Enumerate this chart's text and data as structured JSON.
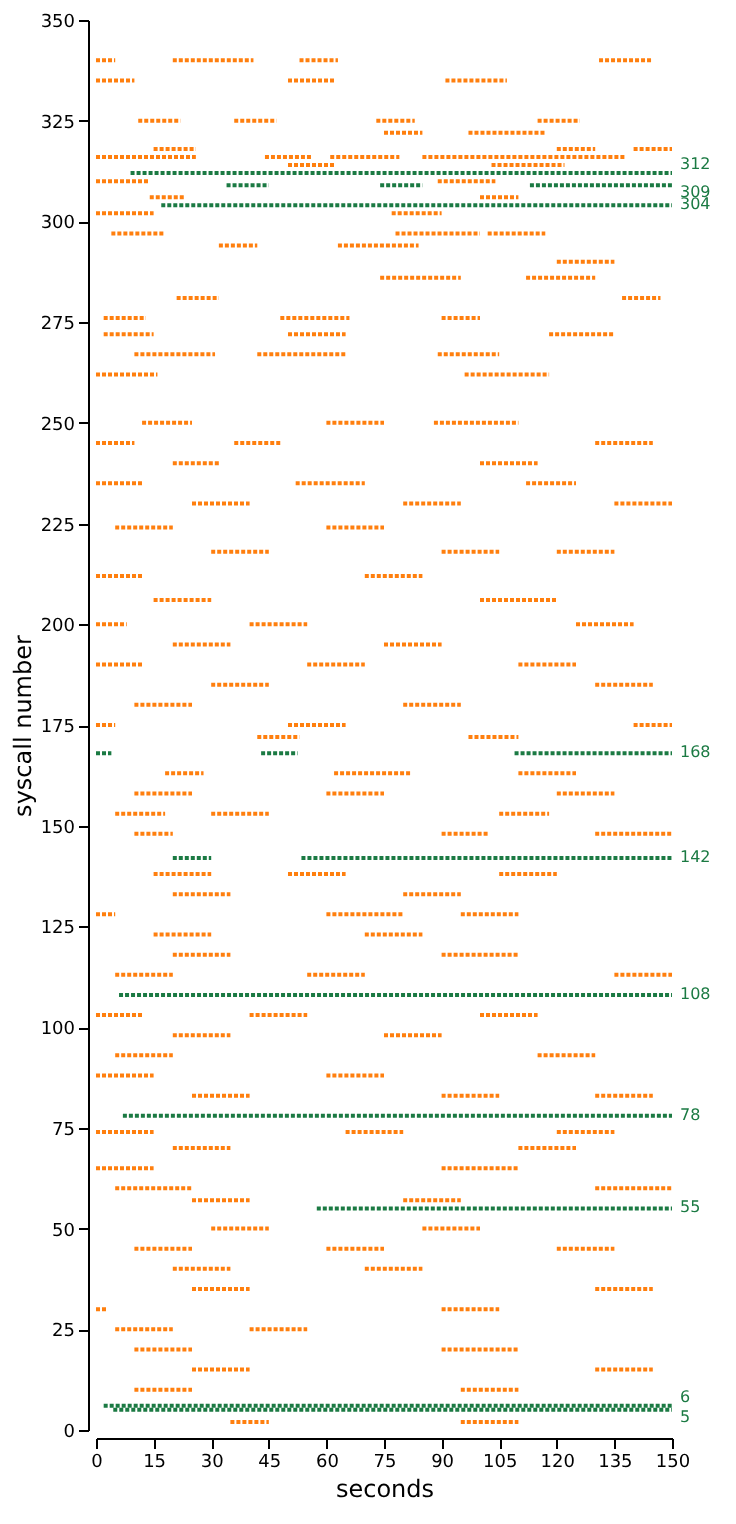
{
  "chart_data": {
    "type": "line",
    "xlabel": "seconds",
    "ylabel": "syscall number",
    "xlim": [
      0,
      150
    ],
    "xticks": [
      0,
      15,
      30,
      45,
      60,
      75,
      90,
      105,
      120,
      135,
      150
    ],
    "ylim": [
      0,
      350
    ],
    "yticks": [
      0,
      25,
      50,
      75,
      100,
      125,
      150,
      175,
      200,
      225,
      250,
      275,
      300,
      325,
      350
    ],
    "grid": false,
    "line_style": "dotted",
    "marker": "none",
    "series": [
      {
        "color": "#ff7f0e",
        "x": [
          0,
          5
        ],
        "values": [
          340,
          340
        ]
      },
      {
        "color": "#ff7f0e",
        "x": [
          20,
          41
        ],
        "values": [
          340,
          340
        ]
      },
      {
        "color": "#ff7f0e",
        "x": [
          53,
          63
        ],
        "values": [
          340,
          340
        ]
      },
      {
        "color": "#ff7f0e",
        "x": [
          131,
          145
        ],
        "values": [
          340,
          340
        ]
      },
      {
        "color": "#ff7f0e",
        "x": [
          0,
          10
        ],
        "values": [
          335,
          335
        ]
      },
      {
        "color": "#ff7f0e",
        "x": [
          50,
          62
        ],
        "values": [
          335,
          335
        ]
      },
      {
        "color": "#ff7f0e",
        "x": [
          91,
          107
        ],
        "values": [
          335,
          335
        ]
      },
      {
        "color": "#ff7f0e",
        "x": [
          11,
          22
        ],
        "values": [
          325,
          325
        ]
      },
      {
        "color": "#ff7f0e",
        "x": [
          36,
          47
        ],
        "values": [
          325,
          325
        ]
      },
      {
        "color": "#ff7f0e",
        "x": [
          73,
          83
        ],
        "values": [
          325,
          325
        ]
      },
      {
        "color": "#ff7f0e",
        "x": [
          115,
          126
        ],
        "values": [
          325,
          325
        ]
      },
      {
        "color": "#ff7f0e",
        "x": [
          75,
          85
        ],
        "values": [
          322,
          322
        ]
      },
      {
        "color": "#ff7f0e",
        "x": [
          97,
          117
        ],
        "values": [
          322,
          322
        ]
      },
      {
        "color": "#ff7f0e",
        "x": [
          15,
          26
        ],
        "values": [
          318,
          318
        ]
      },
      {
        "color": "#ff7f0e",
        "x": [
          120,
          130
        ],
        "values": [
          318,
          318
        ]
      },
      {
        "color": "#ff7f0e",
        "x": [
          140,
          150
        ],
        "values": [
          318,
          318
        ]
      },
      {
        "color": "#ff7f0e",
        "x": [
          0,
          26
        ],
        "values": [
          316,
          316
        ]
      },
      {
        "color": "#ff7f0e",
        "x": [
          44,
          56
        ],
        "values": [
          316,
          316
        ]
      },
      {
        "color": "#ff7f0e",
        "x": [
          61,
          79
        ],
        "values": [
          316,
          316
        ]
      },
      {
        "color": "#ff7f0e",
        "x": [
          85,
          138
        ],
        "values": [
          316,
          316
        ]
      },
      {
        "color": "#ff7f0e",
        "x": [
          50,
          62
        ],
        "values": [
          314,
          314
        ]
      },
      {
        "color": "#ff7f0e",
        "x": [
          103,
          122
        ],
        "values": [
          314,
          314
        ]
      },
      {
        "color": "#ff7f0e",
        "x": [
          0,
          14
        ],
        "values": [
          310,
          310
        ]
      },
      {
        "color": "#ff7f0e",
        "x": [
          89,
          104
        ],
        "values": [
          310,
          310
        ]
      },
      {
        "color": "#ff7f0e",
        "x": [
          14,
          23
        ],
        "values": [
          306,
          306
        ]
      },
      {
        "color": "#ff7f0e",
        "x": [
          100,
          110
        ],
        "values": [
          306,
          306
        ]
      },
      {
        "color": "#ff7f0e",
        "x": [
          0,
          15
        ],
        "values": [
          302,
          302
        ]
      },
      {
        "color": "#ff7f0e",
        "x": [
          77,
          90
        ],
        "values": [
          302,
          302
        ]
      },
      {
        "color": "#ff7f0e",
        "x": [
          4,
          18
        ],
        "values": [
          297,
          297
        ]
      },
      {
        "color": "#ff7f0e",
        "x": [
          78,
          100
        ],
        "values": [
          297,
          297
        ]
      },
      {
        "color": "#ff7f0e",
        "x": [
          102,
          117
        ],
        "values": [
          297,
          297
        ]
      },
      {
        "color": "#ff7f0e",
        "x": [
          32,
          42
        ],
        "values": [
          294,
          294
        ]
      },
      {
        "color": "#ff7f0e",
        "x": [
          63,
          84
        ],
        "values": [
          294,
          294
        ]
      },
      {
        "color": "#ff7f0e",
        "x": [
          120,
          135
        ],
        "values": [
          290,
          290
        ]
      },
      {
        "color": "#ff7f0e",
        "x": [
          74,
          95
        ],
        "values": [
          286,
          286
        ]
      },
      {
        "color": "#ff7f0e",
        "x": [
          112,
          130
        ],
        "values": [
          286,
          286
        ]
      },
      {
        "color": "#ff7f0e",
        "x": [
          21,
          32
        ],
        "values": [
          281,
          281
        ]
      },
      {
        "color": "#ff7f0e",
        "x": [
          137,
          147
        ],
        "values": [
          281,
          281
        ]
      },
      {
        "color": "#ff7f0e",
        "x": [
          2,
          13
        ],
        "values": [
          276,
          276
        ]
      },
      {
        "color": "#ff7f0e",
        "x": [
          48,
          66
        ],
        "values": [
          276,
          276
        ]
      },
      {
        "color": "#ff7f0e",
        "x": [
          90,
          100
        ],
        "values": [
          276,
          276
        ]
      },
      {
        "color": "#ff7f0e",
        "x": [
          2,
          15
        ],
        "values": [
          272,
          272
        ]
      },
      {
        "color": "#ff7f0e",
        "x": [
          50,
          65
        ],
        "values": [
          272,
          272
        ]
      },
      {
        "color": "#ff7f0e",
        "x": [
          118,
          135
        ],
        "values": [
          272,
          272
        ]
      },
      {
        "color": "#ff7f0e",
        "x": [
          10,
          31
        ],
        "values": [
          267,
          267
        ]
      },
      {
        "color": "#ff7f0e",
        "x": [
          42,
          65
        ],
        "values": [
          267,
          267
        ]
      },
      {
        "color": "#ff7f0e",
        "x": [
          89,
          105
        ],
        "values": [
          267,
          267
        ]
      },
      {
        "color": "#ff7f0e",
        "x": [
          0,
          16
        ],
        "values": [
          262,
          262
        ]
      },
      {
        "color": "#ff7f0e",
        "x": [
          96,
          118
        ],
        "values": [
          262,
          262
        ]
      },
      {
        "color": "#ff7f0e",
        "x": [
          12,
          25
        ],
        "values": [
          250,
          250
        ]
      },
      {
        "color": "#ff7f0e",
        "x": [
          60,
          75
        ],
        "values": [
          250,
          250
        ]
      },
      {
        "color": "#ff7f0e",
        "x": [
          88,
          110
        ],
        "values": [
          250,
          250
        ]
      },
      {
        "color": "#ff7f0e",
        "x": [
          0,
          10
        ],
        "values": [
          245,
          245
        ]
      },
      {
        "color": "#ff7f0e",
        "x": [
          36,
          48
        ],
        "values": [
          245,
          245
        ]
      },
      {
        "color": "#ff7f0e",
        "x": [
          130,
          145
        ],
        "values": [
          245,
          245
        ]
      },
      {
        "color": "#ff7f0e",
        "x": [
          20,
          32
        ],
        "values": [
          240,
          240
        ]
      },
      {
        "color": "#ff7f0e",
        "x": [
          100,
          115
        ],
        "values": [
          240,
          240
        ]
      },
      {
        "color": "#ff7f0e",
        "x": [
          0,
          12
        ],
        "values": [
          235,
          235
        ]
      },
      {
        "color": "#ff7f0e",
        "x": [
          52,
          70
        ],
        "values": [
          235,
          235
        ]
      },
      {
        "color": "#ff7f0e",
        "x": [
          112,
          125
        ],
        "values": [
          235,
          235
        ]
      },
      {
        "color": "#ff7f0e",
        "x": [
          25,
          40
        ],
        "values": [
          230,
          230
        ]
      },
      {
        "color": "#ff7f0e",
        "x": [
          80,
          95
        ],
        "values": [
          230,
          230
        ]
      },
      {
        "color": "#ff7f0e",
        "x": [
          135,
          150
        ],
        "values": [
          230,
          230
        ]
      },
      {
        "color": "#ff7f0e",
        "x": [
          5,
          20
        ],
        "values": [
          224,
          224
        ]
      },
      {
        "color": "#ff7f0e",
        "x": [
          60,
          75
        ],
        "values": [
          224,
          224
        ]
      },
      {
        "color": "#ff7f0e",
        "x": [
          30,
          45
        ],
        "values": [
          218,
          218
        ]
      },
      {
        "color": "#ff7f0e",
        "x": [
          90,
          105
        ],
        "values": [
          218,
          218
        ]
      },
      {
        "color": "#ff7f0e",
        "x": [
          120,
          135
        ],
        "values": [
          218,
          218
        ]
      },
      {
        "color": "#ff7f0e",
        "x": [
          0,
          12
        ],
        "values": [
          212,
          212
        ]
      },
      {
        "color": "#ff7f0e",
        "x": [
          70,
          85
        ],
        "values": [
          212,
          212
        ]
      },
      {
        "color": "#ff7f0e",
        "x": [
          15,
          30
        ],
        "values": [
          206,
          206
        ]
      },
      {
        "color": "#ff7f0e",
        "x": [
          100,
          120
        ],
        "values": [
          206,
          206
        ]
      },
      {
        "color": "#ff7f0e",
        "x": [
          0,
          8
        ],
        "values": [
          200,
          200
        ]
      },
      {
        "color": "#ff7f0e",
        "x": [
          40,
          55
        ],
        "values": [
          200,
          200
        ]
      },
      {
        "color": "#ff7f0e",
        "x": [
          125,
          140
        ],
        "values": [
          200,
          200
        ]
      },
      {
        "color": "#ff7f0e",
        "x": [
          20,
          35
        ],
        "values": [
          195,
          195
        ]
      },
      {
        "color": "#ff7f0e",
        "x": [
          75,
          90
        ],
        "values": [
          195,
          195
        ]
      },
      {
        "color": "#ff7f0e",
        "x": [
          0,
          12
        ],
        "values": [
          190,
          190
        ]
      },
      {
        "color": "#ff7f0e",
        "x": [
          55,
          70
        ],
        "values": [
          190,
          190
        ]
      },
      {
        "color": "#ff7f0e",
        "x": [
          110,
          125
        ],
        "values": [
          190,
          190
        ]
      },
      {
        "color": "#ff7f0e",
        "x": [
          30,
          45
        ],
        "values": [
          185,
          185
        ]
      },
      {
        "color": "#ff7f0e",
        "x": [
          130,
          145
        ],
        "values": [
          185,
          185
        ]
      },
      {
        "color": "#ff7f0e",
        "x": [
          10,
          25
        ],
        "values": [
          180,
          180
        ]
      },
      {
        "color": "#ff7f0e",
        "x": [
          80,
          95
        ],
        "values": [
          180,
          180
        ]
      },
      {
        "color": "#ff7f0e",
        "x": [
          0,
          5
        ],
        "values": [
          175,
          175
        ]
      },
      {
        "color": "#ff7f0e",
        "x": [
          50,
          65
        ],
        "values": [
          175,
          175
        ]
      },
      {
        "color": "#ff7f0e",
        "x": [
          140,
          150
        ],
        "values": [
          175,
          175
        ]
      },
      {
        "color": "#ff7f0e",
        "x": [
          42,
          53
        ],
        "values": [
          172,
          172
        ]
      },
      {
        "color": "#ff7f0e",
        "x": [
          97,
          110
        ],
        "values": [
          172,
          172
        ]
      },
      {
        "color": "#ff7f0e",
        "x": [
          18,
          28
        ],
        "values": [
          163,
          163
        ]
      },
      {
        "color": "#ff7f0e",
        "x": [
          62,
          82
        ],
        "values": [
          163,
          163
        ]
      },
      {
        "color": "#ff7f0e",
        "x": [
          110,
          125
        ],
        "values": [
          163,
          163
        ]
      },
      {
        "color": "#ff7f0e",
        "x": [
          10,
          25
        ],
        "values": [
          158,
          158
        ]
      },
      {
        "color": "#ff7f0e",
        "x": [
          60,
          75
        ],
        "values": [
          158,
          158
        ]
      },
      {
        "color": "#ff7f0e",
        "x": [
          120,
          135
        ],
        "values": [
          158,
          158
        ]
      },
      {
        "color": "#ff7f0e",
        "x": [
          5,
          18
        ],
        "values": [
          153,
          153
        ]
      },
      {
        "color": "#ff7f0e",
        "x": [
          30,
          45
        ],
        "values": [
          153,
          153
        ]
      },
      {
        "color": "#ff7f0e",
        "x": [
          105,
          118
        ],
        "values": [
          153,
          153
        ]
      },
      {
        "color": "#ff7f0e",
        "x": [
          10,
          20
        ],
        "values": [
          148,
          148
        ]
      },
      {
        "color": "#ff7f0e",
        "x": [
          90,
          102
        ],
        "values": [
          148,
          148
        ]
      },
      {
        "color": "#ff7f0e",
        "x": [
          130,
          150
        ],
        "values": [
          148,
          148
        ]
      },
      {
        "color": "#ff7f0e",
        "x": [
          15,
          30
        ],
        "values": [
          138,
          138
        ]
      },
      {
        "color": "#ff7f0e",
        "x": [
          50,
          65
        ],
        "values": [
          138,
          138
        ]
      },
      {
        "color": "#ff7f0e",
        "x": [
          105,
          120
        ],
        "values": [
          138,
          138
        ]
      },
      {
        "color": "#ff7f0e",
        "x": [
          20,
          35
        ],
        "values": [
          133,
          133
        ]
      },
      {
        "color": "#ff7f0e",
        "x": [
          80,
          95
        ],
        "values": [
          133,
          133
        ]
      },
      {
        "color": "#ff7f0e",
        "x": [
          0,
          5
        ],
        "values": [
          128,
          128
        ]
      },
      {
        "color": "#ff7f0e",
        "x": [
          60,
          80
        ],
        "values": [
          128,
          128
        ]
      },
      {
        "color": "#ff7f0e",
        "x": [
          95,
          110
        ],
        "values": [
          128,
          128
        ]
      },
      {
        "color": "#ff7f0e",
        "x": [
          15,
          30
        ],
        "values": [
          123,
          123
        ]
      },
      {
        "color": "#ff7f0e",
        "x": [
          70,
          85
        ],
        "values": [
          123,
          123
        ]
      },
      {
        "color": "#ff7f0e",
        "x": [
          20,
          35
        ],
        "values": [
          118,
          118
        ]
      },
      {
        "color": "#ff7f0e",
        "x": [
          90,
          110
        ],
        "values": [
          118,
          118
        ]
      },
      {
        "color": "#ff7f0e",
        "x": [
          5,
          20
        ],
        "values": [
          113,
          113
        ]
      },
      {
        "color": "#ff7f0e",
        "x": [
          55,
          70
        ],
        "values": [
          113,
          113
        ]
      },
      {
        "color": "#ff7f0e",
        "x": [
          135,
          150
        ],
        "values": [
          113,
          113
        ]
      },
      {
        "color": "#ff7f0e",
        "x": [
          0,
          12
        ],
        "values": [
          103,
          103
        ]
      },
      {
        "color": "#ff7f0e",
        "x": [
          40,
          55
        ],
        "values": [
          103,
          103
        ]
      },
      {
        "color": "#ff7f0e",
        "x": [
          100,
          115
        ],
        "values": [
          103,
          103
        ]
      },
      {
        "color": "#ff7f0e",
        "x": [
          20,
          35
        ],
        "values": [
          98,
          98
        ]
      },
      {
        "color": "#ff7f0e",
        "x": [
          75,
          90
        ],
        "values": [
          98,
          98
        ]
      },
      {
        "color": "#ff7f0e",
        "x": [
          5,
          20
        ],
        "values": [
          93,
          93
        ]
      },
      {
        "color": "#ff7f0e",
        "x": [
          115,
          130
        ],
        "values": [
          93,
          93
        ]
      },
      {
        "color": "#ff7f0e",
        "x": [
          0,
          15
        ],
        "values": [
          88,
          88
        ]
      },
      {
        "color": "#ff7f0e",
        "x": [
          60,
          75
        ],
        "values": [
          88,
          88
        ]
      },
      {
        "color": "#ff7f0e",
        "x": [
          25,
          40
        ],
        "values": [
          83,
          83
        ]
      },
      {
        "color": "#ff7f0e",
        "x": [
          90,
          105
        ],
        "values": [
          83,
          83
        ]
      },
      {
        "color": "#ff7f0e",
        "x": [
          130,
          145
        ],
        "values": [
          83,
          83
        ]
      },
      {
        "color": "#ff7f0e",
        "x": [
          0,
          15
        ],
        "values": [
          74,
          74
        ]
      },
      {
        "color": "#ff7f0e",
        "x": [
          65,
          80
        ],
        "values": [
          74,
          74
        ]
      },
      {
        "color": "#ff7f0e",
        "x": [
          120,
          135
        ],
        "values": [
          74,
          74
        ]
      },
      {
        "color": "#ff7f0e",
        "x": [
          20,
          35
        ],
        "values": [
          70,
          70
        ]
      },
      {
        "color": "#ff7f0e",
        "x": [
          110,
          125
        ],
        "values": [
          70,
          70
        ]
      },
      {
        "color": "#ff7f0e",
        "x": [
          0,
          15
        ],
        "values": [
          65,
          65
        ]
      },
      {
        "color": "#ff7f0e",
        "x": [
          90,
          110
        ],
        "values": [
          65,
          65
        ]
      },
      {
        "color": "#ff7f0e",
        "x": [
          5,
          25
        ],
        "values": [
          60,
          60
        ]
      },
      {
        "color": "#ff7f0e",
        "x": [
          130,
          150
        ],
        "values": [
          60,
          60
        ]
      },
      {
        "color": "#ff7f0e",
        "x": [
          25,
          40
        ],
        "values": [
          57,
          57
        ]
      },
      {
        "color": "#ff7f0e",
        "x": [
          80,
          95
        ],
        "values": [
          57,
          57
        ]
      },
      {
        "color": "#ff7f0e",
        "x": [
          30,
          45
        ],
        "values": [
          50,
          50
        ]
      },
      {
        "color": "#ff7f0e",
        "x": [
          85,
          100
        ],
        "values": [
          50,
          50
        ]
      },
      {
        "color": "#ff7f0e",
        "x": [
          10,
          25
        ],
        "values": [
          45,
          45
        ]
      },
      {
        "color": "#ff7f0e",
        "x": [
          60,
          75
        ],
        "values": [
          45,
          45
        ]
      },
      {
        "color": "#ff7f0e",
        "x": [
          120,
          135
        ],
        "values": [
          45,
          45
        ]
      },
      {
        "color": "#ff7f0e",
        "x": [
          20,
          35
        ],
        "values": [
          40,
          40
        ]
      },
      {
        "color": "#ff7f0e",
        "x": [
          70,
          85
        ],
        "values": [
          40,
          40
        ]
      },
      {
        "color": "#ff7f0e",
        "x": [
          25,
          40
        ],
        "values": [
          35,
          35
        ]
      },
      {
        "color": "#ff7f0e",
        "x": [
          130,
          145
        ],
        "values": [
          35,
          35
        ]
      },
      {
        "color": "#ff7f0e",
        "x": [
          0,
          3
        ],
        "values": [
          30,
          30
        ]
      },
      {
        "color": "#ff7f0e",
        "x": [
          90,
          105
        ],
        "values": [
          30,
          30
        ]
      },
      {
        "color": "#ff7f0e",
        "x": [
          5,
          20
        ],
        "values": [
          25,
          25
        ]
      },
      {
        "color": "#ff7f0e",
        "x": [
          40,
          55
        ],
        "values": [
          25,
          25
        ]
      },
      {
        "color": "#ff7f0e",
        "x": [
          10,
          25
        ],
        "values": [
          20,
          20
        ]
      },
      {
        "color": "#ff7f0e",
        "x": [
          90,
          110
        ],
        "values": [
          20,
          20
        ]
      },
      {
        "color": "#ff7f0e",
        "x": [
          25,
          40
        ],
        "values": [
          15,
          15
        ]
      },
      {
        "color": "#ff7f0e",
        "x": [
          130,
          145
        ],
        "values": [
          15,
          15
        ]
      },
      {
        "color": "#ff7f0e",
        "x": [
          10,
          25
        ],
        "values": [
          10,
          10
        ]
      },
      {
        "color": "#ff7f0e",
        "x": [
          95,
          110
        ],
        "values": [
          10,
          10
        ]
      },
      {
        "color": "#ff7f0e",
        "x": [
          35,
          45
        ],
        "values": [
          2,
          2
        ]
      },
      {
        "color": "#ff7f0e",
        "x": [
          95,
          110
        ],
        "values": [
          2,
          2
        ]
      },
      {
        "name": "312",
        "color": "#1b7a43",
        "x": [
          9,
          150
        ],
        "values": [
          312,
          312
        ]
      },
      {
        "color": "#1b7a43",
        "x": [
          34,
          45
        ],
        "values": [
          309,
          309
        ]
      },
      {
        "color": "#1b7a43",
        "x": [
          74,
          85
        ],
        "values": [
          309,
          309
        ]
      },
      {
        "name": "309",
        "color": "#1b7a43",
        "x": [
          113,
          150
        ],
        "values": [
          309,
          309
        ]
      },
      {
        "name": "304",
        "color": "#1b7a43",
        "x": [
          17,
          150
        ],
        "values": [
          304,
          304
        ]
      },
      {
        "color": "#1b7a43",
        "x": [
          0,
          4
        ],
        "values": [
          168,
          168
        ]
      },
      {
        "color": "#1b7a43",
        "x": [
          43,
          52.5
        ],
        "values": [
          168,
          168
        ]
      },
      {
        "name": "168",
        "color": "#1b7a43",
        "x": [
          109,
          150
        ],
        "values": [
          168,
          168
        ]
      },
      {
        "color": "#1b7a43",
        "x": [
          20,
          30
        ],
        "values": [
          142,
          142
        ]
      },
      {
        "name": "142",
        "color": "#1b7a43",
        "x": [
          53.5,
          150
        ],
        "values": [
          142,
          142
        ]
      },
      {
        "name": "108",
        "color": "#1b7a43",
        "x": [
          6,
          150
        ],
        "values": [
          108,
          108
        ]
      },
      {
        "name": "78",
        "color": "#1b7a43",
        "x": [
          7,
          150
        ],
        "values": [
          78,
          78
        ]
      },
      {
        "name": "55",
        "color": "#1b7a43",
        "x": [
          57.5,
          150
        ],
        "values": [
          55,
          55
        ]
      },
      {
        "name": "6",
        "color": "#1b7a43",
        "x": [
          2,
          150
        ],
        "values": [
          6,
          6
        ]
      },
      {
        "name": "5",
        "color": "#1b7a43",
        "x": [
          4.5,
          150
        ],
        "values": [
          5,
          5
        ]
      }
    ]
  }
}
